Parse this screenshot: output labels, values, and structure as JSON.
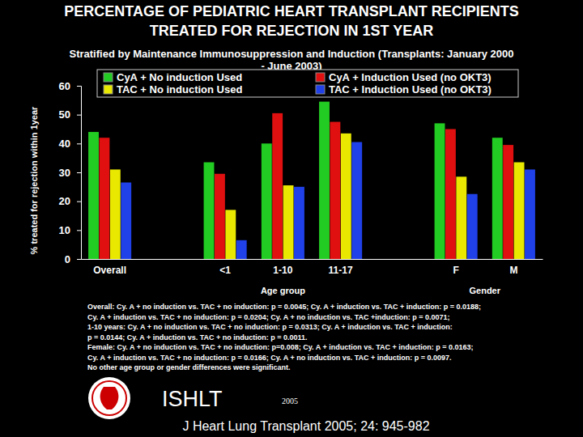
{
  "chart_data": {
    "type": "bar",
    "title": "PERCENTAGE OF PEDIATRIC HEART TRANSPLANT RECIPIENTS\nTREATED FOR REJECTION IN 1ST YEAR",
    "subtitle": "Stratified by Maintenance Immunosuppression and Induction (Transplants: January 2000\n- June 2003)",
    "y_label": "% treated for rejection within 1year",
    "categories": [
      "Overall",
      null,
      "<1",
      "1-10",
      "11-17",
      null,
      "F",
      "M"
    ],
    "series": [
      {
        "name": "CyA + No induction Used",
        "color": "#22cc22",
        "values": [
          44,
          null,
          33.5,
          40,
          54.5,
          null,
          47,
          42
        ]
      },
      {
        "name": "CyA + Induction Used (no OKT3)",
        "color": "#e01010",
        "values": [
          42,
          null,
          29.5,
          50.5,
          47.5,
          null,
          45,
          39.5
        ]
      },
      {
        "name": "TAC + No induction Used",
        "color": "#e8e800",
        "values": [
          31,
          null,
          17,
          25.5,
          43.5,
          null,
          28.5,
          33.5
        ]
      },
      {
        "name": "TAC + Induction Used (no OKT3)",
        "color": "#2040e8",
        "values": [
          26.5,
          null,
          6.5,
          25,
          40.5,
          null,
          22.5,
          31
        ]
      }
    ],
    "ylim": [
      0,
      60
    ],
    "yticks": [
      0,
      10,
      20,
      30,
      40,
      50,
      60
    ],
    "grid": false,
    "legend": "top",
    "annotations": [
      "Age group",
      "Gender",
      "ISHLT",
      "2005",
      "J Heart Lung Transplant 2005; 24: 945-982"
    ],
    "footnote": [
      "Overall: Cy. A + no induction vs. TAC + no induction: p = 0.0045; Cy. A + induction vs. TAC + induction: p = 0.0188;",
      "Cy. A + induction vs. TAC + no induction: p = 0.0204; Cy. A + no induction vs. TAC +induction: p = 0.0071;",
      "1-10 years: Cy. A + no induction vs. TAC + no induction: p = 0.0313; Cy. A + induction vs. TAC + induction:",
      "p = 0.0144; Cy. A + induction vs. TAC + no induction: p = 0.0011.",
      "Female: Cy. A + no induction vs. TAC + no induction: p=0.008; Cy. A + induction vs. TAC + induction: p = 0.0163;",
      "Cy. A + induction vs. TAC + no induction: p = 0.0166; Cy. A + no induction vs. TAC + induction: p = 0.0097.",
      "No other age group or gender differences were significant."
    ]
  }
}
